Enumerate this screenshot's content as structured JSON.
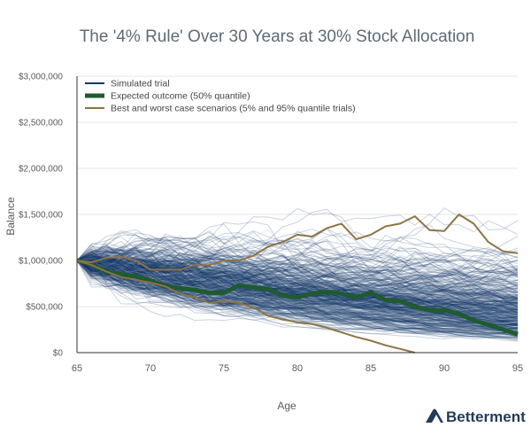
{
  "chart_data": {
    "type": "line",
    "title": "The '4% Rule' Over 30 Years at 30% Stock Allocation",
    "xlabel": "Age",
    "ylabel": "Balance",
    "xlim": [
      65,
      95
    ],
    "ylim": [
      0,
      3000000
    ],
    "x_ticks": [
      65,
      70,
      75,
      80,
      85,
      90,
      95
    ],
    "y_ticks": [
      0,
      500000,
      1000000,
      1500000,
      2000000,
      2500000,
      3000000
    ],
    "y_tick_labels": [
      "$0",
      "$500,000",
      "$1,000,000",
      "$1,500,000",
      "$2,000,000",
      "$2,500,000",
      "$3,000,000"
    ],
    "grid": "horizontal",
    "legend_placement": "top-left",
    "legend": [
      {
        "label": "Simulated trial",
        "color": "#12386b",
        "weight": "thin"
      },
      {
        "label": "Expected outcome (50% quantile)",
        "color": "#1f5a31",
        "weight": "thick"
      },
      {
        "label": "Best and worst case scenarios (5% and 95% quantile trials)",
        "color": "#8c7444",
        "weight": "medium"
      }
    ],
    "series": [
      {
        "name": "Expected outcome (50% quantile)",
        "color": "#1f5a31",
        "x": [
          65,
          66,
          67,
          68,
          69,
          70,
          71,
          72,
          73,
          74,
          75,
          76,
          77,
          78,
          79,
          80,
          81,
          82,
          83,
          84,
          85,
          86,
          87,
          88,
          89,
          90,
          91,
          92,
          93,
          94,
          95
        ],
        "values": [
          1000000,
          960000,
          880000,
          850000,
          830000,
          780000,
          720000,
          700000,
          680000,
          650000,
          650000,
          730000,
          710000,
          690000,
          620000,
          600000,
          640000,
          660000,
          640000,
          600000,
          650000,
          570000,
          560000,
          500000,
          460000,
          460000,
          420000,
          350000,
          300000,
          250000,
          200000
        ]
      },
      {
        "name": "Best and worst case scenarios (5% and 95% quantile trials)",
        "color": "#8c7444",
        "x": [
          65,
          66,
          67,
          68,
          69,
          70,
          71,
          72,
          73,
          74,
          75,
          76,
          77,
          78,
          79,
          80,
          81,
          82,
          83,
          84,
          85,
          86,
          87,
          88,
          89,
          90,
          91,
          92,
          93,
          94,
          95
        ],
        "values": [
          1000000,
          980000,
          1030000,
          1040000,
          1000000,
          900000,
          900000,
          900000,
          950000,
          950000,
          1000000,
          1000000,
          1050000,
          1150000,
          1200000,
          1280000,
          1260000,
          1350000,
          1400000,
          1230000,
          1280000,
          1370000,
          1400000,
          1480000,
          1330000,
          1320000,
          1500000,
          1400000,
          1200000,
          1100000,
          1080000
        ]
      },
      {
        "name": "Best and worst case scenarios (5% and 95% quantile trials)",
        "color": "#8c7444",
        "x": [
          65,
          66,
          67,
          68,
          69,
          70,
          71,
          72,
          73,
          74,
          75,
          76,
          77,
          78,
          79,
          80,
          81,
          82,
          83,
          84,
          85,
          86,
          87,
          88
        ],
        "values": [
          1000000,
          950000,
          880000,
          820000,
          790000,
          760000,
          720000,
          640000,
          600000,
          540000,
          560000,
          540000,
          490000,
          400000,
          360000,
          330000,
          310000,
          270000,
          220000,
          170000,
          130000,
          80000,
          40000,
          0
        ]
      }
    ],
    "simulated_trials": {
      "name": "Simulated trial",
      "color": "#12386b",
      "start_value": 1000000,
      "count": 400
    }
  },
  "brand": {
    "name": "Betterment",
    "logo_color": "#243b5a"
  }
}
